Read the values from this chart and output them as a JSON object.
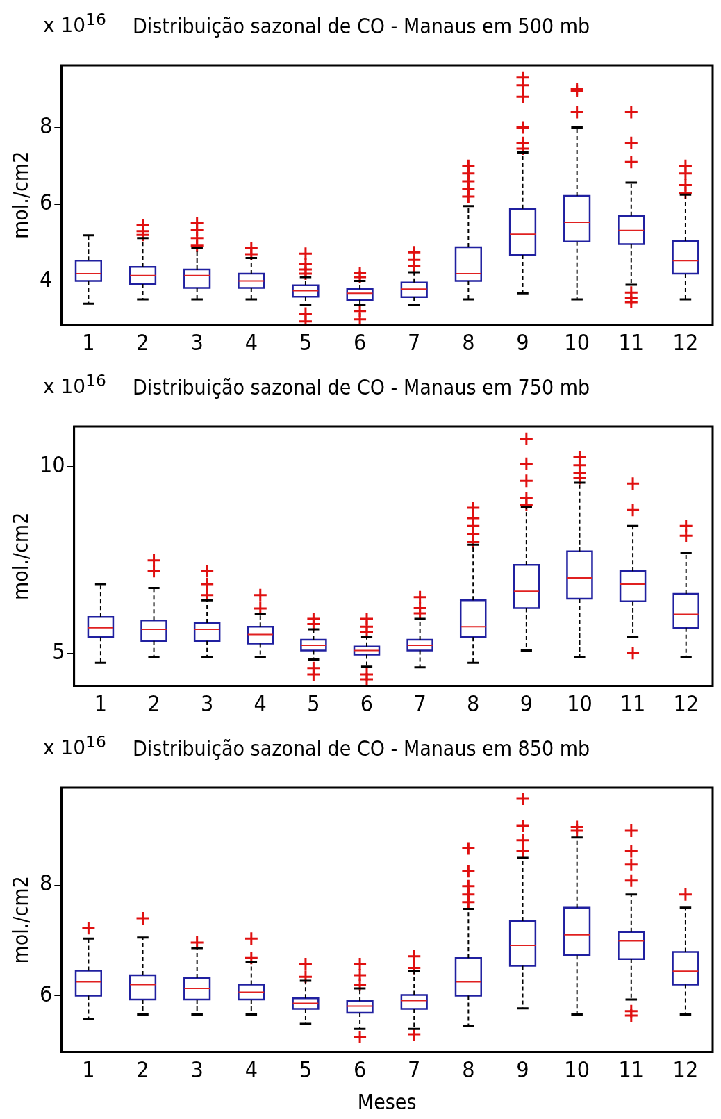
{
  "chart_data": [
    {
      "type": "box",
      "title": "Distribuição sazonal de CO - Manaus em 500 mb",
      "ylabel": "mol./cm2",
      "annotations": [
        "x 10$^{16}$"
      ],
      "categories": [
        "1",
        "2",
        "3",
        "4",
        "5",
        "6",
        "7",
        "8",
        "9",
        "10",
        "11",
        "12"
      ],
      "color": "#2020a0",
      "ylim": [
        2.86,
        9.62
      ],
      "yticks": [
        4,
        6,
        8
      ],
      "grid": false,
      "boxes": [
        {
          "low": 3.41,
          "q1": 4.0,
          "median": 4.19,
          "q3": 4.53,
          "high": 5.19
        },
        {
          "low": 3.52,
          "q1": 3.92,
          "median": 4.14,
          "q3": 4.37,
          "high": 5.12,
          "outliers": [
            5.2,
            5.3,
            5.45
          ]
        },
        {
          "low": 3.52,
          "q1": 3.82,
          "median": 4.14,
          "q3": 4.3,
          "high": 4.85,
          "outliers": [
            4.92,
            5.12,
            5.33,
            5.51
          ]
        },
        {
          "low": 3.52,
          "q1": 3.82,
          "median": 4.0,
          "q3": 4.19,
          "high": 4.6,
          "outliers": [
            4.7,
            4.85
          ]
        },
        {
          "low": 3.37,
          "q1": 3.59,
          "median": 3.75,
          "q3": 3.89,
          "high": 4.1,
          "outliers": [
            2.95,
            3.15,
            4.19,
            4.3,
            4.44,
            4.71
          ]
        },
        {
          "low": 3.37,
          "q1": 3.51,
          "median": 3.68,
          "q3": 3.79,
          "high": 4.0,
          "outliers": [
            3.0,
            3.22,
            4.1,
            4.2
          ]
        },
        {
          "low": 3.37,
          "q1": 3.58,
          "median": 3.79,
          "q3": 3.96,
          "high": 4.23,
          "outliers": [
            4.4,
            4.55,
            4.75
          ]
        },
        {
          "low": 3.52,
          "q1": 4.0,
          "median": 4.19,
          "q3": 4.88,
          "high": 5.95,
          "outliers": [
            6.2,
            6.4,
            6.6,
            6.8,
            7.0
          ]
        },
        {
          "low": 3.68,
          "q1": 4.68,
          "median": 5.22,
          "q3": 5.88,
          "high": 7.35,
          "outliers": [
            7.45,
            7.6,
            8.0,
            8.8,
            9.1,
            9.3
          ]
        },
        {
          "low": 3.52,
          "q1": 5.03,
          "median": 5.53,
          "q3": 6.22,
          "high": 8.0,
          "outliers": [
            8.4,
            8.95,
            9.0
          ]
        },
        {
          "low": 3.9,
          "q1": 4.96,
          "median": 5.32,
          "q3": 5.7,
          "high": 6.56,
          "outliers": [
            3.45,
            3.55,
            3.7,
            7.1,
            7.6,
            8.4
          ]
        },
        {
          "low": 3.52,
          "q1": 4.19,
          "median": 4.53,
          "q3": 5.04,
          "high": 6.25,
          "outliers": [
            6.3,
            6.5,
            6.8,
            7.0
          ]
        }
      ]
    },
    {
      "type": "box",
      "title": "Distribuição sazonal de CO - Manaus em 750 mb",
      "ylabel": "mol./cm2",
      "annotations": [
        "x 10$^{16}$"
      ],
      "categories": [
        "1",
        "2",
        "3",
        "4",
        "5",
        "6",
        "7",
        "8",
        "9",
        "10",
        "11",
        "12"
      ],
      "color": "#2020a0",
      "ylim": [
        4.12,
        11.08
      ],
      "yticks": [
        5,
        10
      ],
      "grid": false,
      "boxes": [
        {
          "low": 4.74,
          "q1": 5.43,
          "median": 5.68,
          "q3": 5.97,
          "high": 6.85
        },
        {
          "low": 4.9,
          "q1": 5.33,
          "median": 5.64,
          "q3": 5.88,
          "high": 6.75,
          "outliers": [
            7.2,
            7.49
          ]
        },
        {
          "low": 4.9,
          "q1": 5.33,
          "median": 5.64,
          "q3": 5.81,
          "high": 6.42,
          "outliers": [
            6.56,
            6.85,
            7.2
          ]
        },
        {
          "low": 4.9,
          "q1": 5.26,
          "median": 5.5,
          "q3": 5.71,
          "high": 6.05,
          "outliers": [
            6.2,
            6.56
          ]
        },
        {
          "low": 4.83,
          "q1": 5.07,
          "median": 5.21,
          "q3": 5.36,
          "high": 5.64,
          "outliers": [
            4.43,
            4.6,
            5.78,
            5.92
          ]
        },
        {
          "low": 4.64,
          "q1": 4.96,
          "median": 5.07,
          "q3": 5.18,
          "high": 5.43,
          "outliers": [
            4.3,
            4.43,
            5.57,
            5.71,
            5.92
          ]
        },
        {
          "low": 4.62,
          "q1": 5.07,
          "median": 5.21,
          "q3": 5.36,
          "high": 5.92,
          "outliers": [
            6.07,
            6.21,
            6.5
          ]
        },
        {
          "low": 4.74,
          "q1": 5.43,
          "median": 5.71,
          "q3": 6.42,
          "high": 7.91,
          "outliers": [
            7.98,
            8.2,
            8.41,
            8.62,
            8.9
          ]
        },
        {
          "low": 5.07,
          "q1": 6.21,
          "median": 6.66,
          "q3": 7.37,
          "high": 8.93,
          "outliers": [
            8.98,
            9.15,
            9.62,
            10.08,
            10.75
          ]
        },
        {
          "low": 4.9,
          "q1": 6.46,
          "median": 7.02,
          "q3": 7.73,
          "high": 9.57,
          "outliers": [
            9.69,
            9.83,
            10.04,
            10.26
          ]
        },
        {
          "low": 5.43,
          "q1": 6.39,
          "median": 6.85,
          "q3": 7.2,
          "high": 8.41,
          "outliers": [
            5.0,
            8.84,
            9.55
          ]
        },
        {
          "low": 4.9,
          "q1": 5.68,
          "median": 6.04,
          "q3": 6.59,
          "high": 7.7,
          "outliers": [
            8.15,
            8.41
          ]
        }
      ]
    },
    {
      "type": "box",
      "title": "Distribuição sazonal de CO - Manaus em 850 mb",
      "ylabel": "mol./cm2",
      "xlabel": "Meses",
      "annotations": [
        "x 10$^{16}$"
      ],
      "categories": [
        "1",
        "2",
        "3",
        "4",
        "5",
        "6",
        "7",
        "8",
        "9",
        "10",
        "11",
        "12"
      ],
      "color": "#2020a0",
      "ylim": [
        4.98,
        9.76
      ],
      "yticks": [
        6,
        8
      ],
      "grid": false,
      "boxes": [
        {
          "low": 5.57,
          "q1": 6.0,
          "median": 6.25,
          "q3": 6.45,
          "high": 7.03,
          "outliers": [
            7.22
          ]
        },
        {
          "low": 5.66,
          "q1": 5.93,
          "median": 6.2,
          "q3": 6.37,
          "high": 7.05,
          "outliers": [
            7.4
          ]
        },
        {
          "low": 5.66,
          "q1": 5.93,
          "median": 6.13,
          "q3": 6.32,
          "high": 6.86,
          "outliers": [
            6.96
          ]
        },
        {
          "low": 5.66,
          "q1": 5.93,
          "median": 6.06,
          "q3": 6.2,
          "high": 6.61,
          "outliers": [
            6.68,
            7.03
          ]
        },
        {
          "low": 5.49,
          "q1": 5.76,
          "median": 5.86,
          "q3": 5.95,
          "high": 6.27,
          "outliers": [
            6.34,
            6.57
          ]
        },
        {
          "low": 5.4,
          "q1": 5.69,
          "median": 5.81,
          "q3": 5.9,
          "high": 6.13,
          "outliers": [
            5.25,
            6.2,
            6.37,
            6.57
          ]
        },
        {
          "low": 5.4,
          "q1": 5.76,
          "median": 5.91,
          "q3": 6.01,
          "high": 6.44,
          "outliers": [
            5.3,
            6.5,
            6.71
          ]
        },
        {
          "low": 5.46,
          "q1": 6.0,
          "median": 6.25,
          "q3": 6.68,
          "high": 7.57,
          "outliers": [
            7.69,
            7.83,
            7.98,
            8.25,
            8.66
          ]
        },
        {
          "low": 5.77,
          "q1": 6.54,
          "median": 6.91,
          "q3": 7.35,
          "high": 8.49,
          "outliers": [
            8.61,
            8.81,
            9.07,
            9.56
          ]
        },
        {
          "low": 5.66,
          "q1": 6.73,
          "median": 7.1,
          "q3": 7.59,
          "high": 8.86,
          "outliers": [
            8.98,
            9.05
          ]
        },
        {
          "low": 5.93,
          "q1": 6.66,
          "median": 6.99,
          "q3": 7.15,
          "high": 7.83,
          "outliers": [
            5.64,
            5.72,
            8.08,
            8.37,
            8.61,
            8.98
          ]
        },
        {
          "low": 5.66,
          "q1": 6.2,
          "median": 6.44,
          "q3": 6.79,
          "high": 7.59,
          "outliers": [
            7.83
          ]
        }
      ]
    }
  ]
}
